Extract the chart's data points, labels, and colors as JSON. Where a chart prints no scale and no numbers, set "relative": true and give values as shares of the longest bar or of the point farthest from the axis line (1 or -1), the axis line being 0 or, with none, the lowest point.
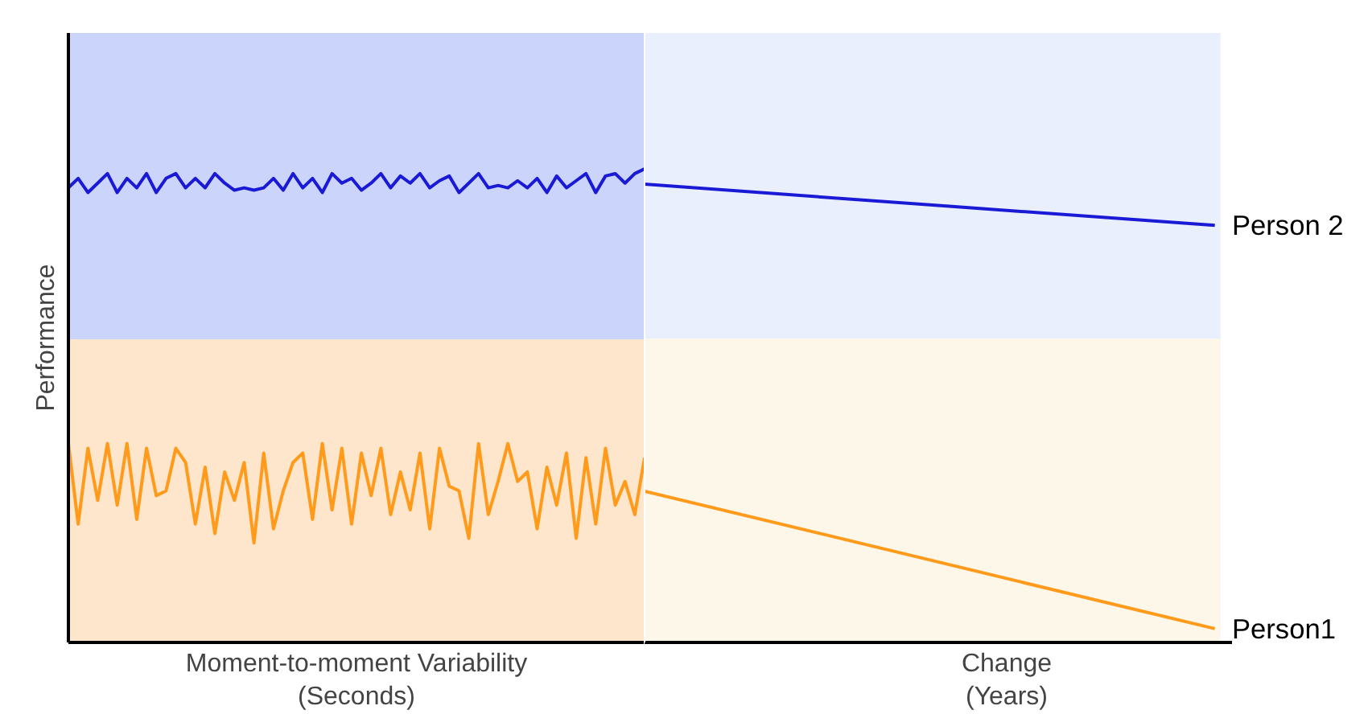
{
  "chart_data": [
    {
      "type": "line",
      "relative": true,
      "ylabel": "Performance",
      "xlabel": "Moment-to-moment Variability\n(Seconds)",
      "tick_labels": false,
      "categories": [
        null,
        null,
        null,
        null,
        null,
        null,
        null,
        null,
        null,
        null,
        null,
        null,
        null,
        null,
        null,
        null,
        null,
        null,
        null,
        null,
        null,
        null,
        null,
        null,
        null,
        null,
        null,
        null,
        null,
        null,
        null,
        null,
        null,
        null,
        null,
        null,
        null,
        null,
        null,
        null,
        null,
        null,
        null,
        null,
        null,
        null,
        null,
        null,
        null,
        null,
        null,
        null,
        null,
        null,
        null,
        null,
        null,
        null,
        null,
        null
      ],
      "bands": [
        {
          "axis": "y",
          "from": 0.64,
          "to": 1.287,
          "color": "#cbd5fb"
        },
        {
          "axis": "y",
          "from": 0,
          "to": 0.64,
          "color": "#fde6cb"
        }
      ],
      "series": [
        {
          "color": "#1a1ad6",
          "values": [
            0.96,
            0.98,
            0.95,
            0.97,
            0.99,
            0.95,
            0.98,
            0.96,
            0.99,
            0.95,
            0.98,
            0.99,
            0.96,
            0.98,
            0.96,
            0.99,
            0.97,
            0.955,
            0.96,
            0.955,
            0.96,
            0.98,
            0.955,
            0.99,
            0.96,
            0.98,
            0.95,
            0.99,
            0.97,
            0.98,
            0.955,
            0.97,
            0.99,
            0.96,
            0.985,
            0.97,
            0.99,
            0.96,
            0.975,
            0.985,
            0.95,
            0.97,
            0.99,
            0.96,
            0.965,
            0.96,
            0.975,
            0.96,
            0.98,
            0.95,
            0.985,
            0.96,
            0.975,
            0.99,
            0.95,
            0.985,
            0.99,
            0.97,
            0.99,
            1.0
          ]
        },
        {
          "color": "#ff9a1a",
          "values": [
            0.42,
            0.25,
            0.41,
            0.3,
            0.42,
            0.29,
            0.42,
            0.26,
            0.41,
            0.31,
            0.32,
            0.41,
            0.38,
            0.25,
            0.37,
            0.23,
            0.36,
            0.3,
            0.38,
            0.21,
            0.4,
            0.24,
            0.32,
            0.38,
            0.4,
            0.26,
            0.42,
            0.28,
            0.41,
            0.25,
            0.4,
            0.31,
            0.41,
            0.27,
            0.36,
            0.28,
            0.4,
            0.24,
            0.41,
            0.33,
            0.32,
            0.22,
            0.42,
            0.27,
            0.34,
            0.42,
            0.34,
            0.36,
            0.24,
            0.37,
            0.29,
            0.4,
            0.22,
            0.39,
            0.25,
            0.41,
            0.29,
            0.34,
            0.27,
            0.39
          ]
        }
      ]
    },
    {
      "type": "line",
      "relative": true,
      "xlabel": "Change\n(Years)",
      "tick_labels": false,
      "categories": [
        null,
        null
      ],
      "bands": [
        {
          "axis": "y",
          "from": 0.663,
          "to": 1.33,
          "color": "#e9effd"
        },
        {
          "axis": "y",
          "from": 0,
          "to": 0.663,
          "color": "#fdf7ea"
        }
      ],
      "series": [
        {
          "name": "Person 2",
          "color": "#1a1ad6",
          "values": [
            1.0,
            0.91
          ]
        },
        {
          "name": "Person1",
          "color": "#ff9a1a",
          "values": [
            0.33,
            0.03
          ]
        }
      ]
    }
  ]
}
